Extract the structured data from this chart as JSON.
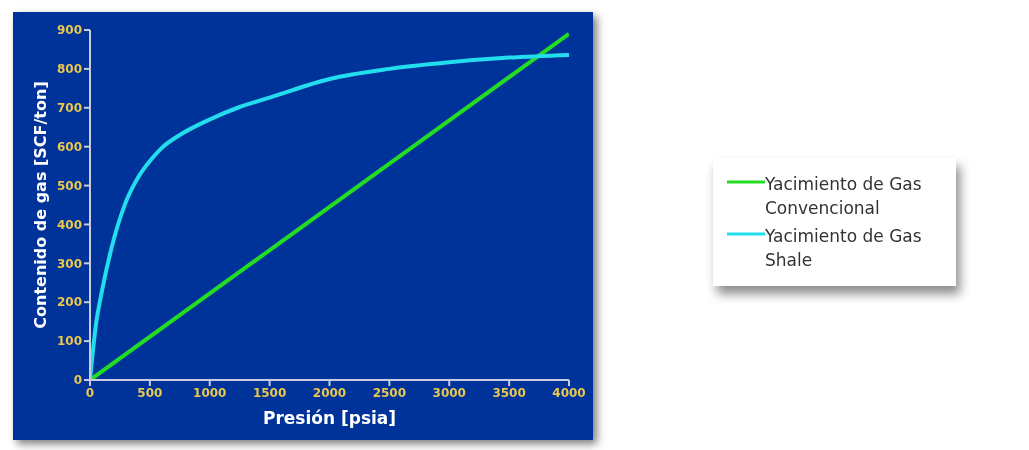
{
  "chart_data": {
    "type": "line",
    "xlabel": "Presión [psia]",
    "ylabel": "Contenido de gas [SCF/ton]",
    "xlim": [
      0,
      4000
    ],
    "xticks": [
      0,
      500,
      1000,
      1500,
      2000,
      2500,
      3000,
      3500,
      4000
    ],
    "ylim": [
      0,
      900
    ],
    "yticks": [
      0,
      100,
      200,
      300,
      400,
      500,
      600,
      700,
      800,
      900
    ],
    "grid": false,
    "legend": "right",
    "marker": "none",
    "line_style": "solid",
    "series": [
      {
        "name": "Yacimiento de Gas Convencional",
        "color": "#22dd22",
        "x": [
          0,
          4000
        ],
        "values": [
          0,
          890
        ]
      },
      {
        "name": "Yacimiento de Gas Shale",
        "color": "#22ddee",
        "x": [
          0,
          50,
          100,
          200,
          300,
          400,
          500,
          600,
          750,
          1000,
          1250,
          1500,
          2000,
          2500,
          3000,
          3500,
          4000
        ],
        "values": [
          0,
          143,
          229,
          363,
          458,
          520,
          563,
          597,
          630,
          670,
          702,
          726,
          774,
          800,
          817,
          829,
          836
        ]
      }
    ]
  }
}
